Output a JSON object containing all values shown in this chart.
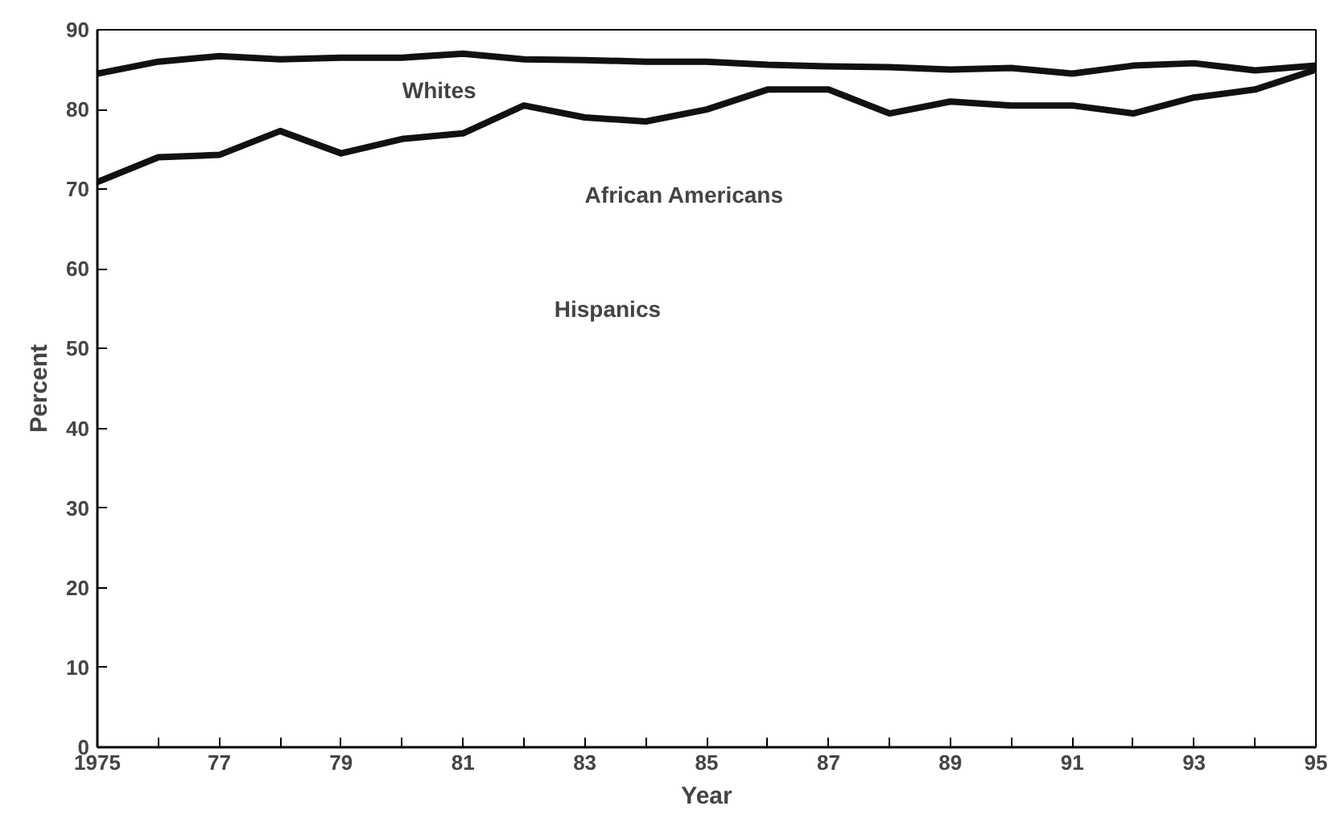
{
  "chart_data": {
    "type": "line",
    "xlabel": "Year",
    "ylabel": "Percent",
    "x": [
      1975,
      1976,
      1977,
      1978,
      1979,
      1980,
      1981,
      1982,
      1983,
      1984,
      1985,
      1986,
      1987,
      1988,
      1989,
      1990,
      1991,
      1992,
      1993,
      1994,
      1995
    ],
    "series": [
      {
        "name": "Whites",
        "color": "#111111",
        "values": [
          84.5,
          86,
          86.7,
          86.3,
          86.5,
          86.5,
          87,
          86.3,
          86.2,
          86,
          86,
          85.6,
          85.4,
          85.3,
          85,
          85.2,
          84.5,
          85.5,
          85.8,
          84.9,
          85.5
        ]
      },
      {
        "name": "African Americans",
        "color": "#111111",
        "values": [
          70.9,
          74,
          74.3,
          77.3,
          74.5,
          76.3,
          77,
          80.5,
          79,
          78.5,
          80,
          82.5,
          82.5,
          79.5,
          81,
          80.5,
          80.5,
          79.5,
          81.5,
          82.5,
          85
        ]
      }
    ],
    "annotations": [
      "Hispanics"
    ],
    "xlim": [
      1975,
      1995
    ],
    "ylim": [
      0,
      90
    ],
    "xticks": [
      1975,
      {
        "value": 1976,
        "label": null
      },
      {
        "value": 1977,
        "label": "77"
      },
      {
        "value": 1978,
        "label": null
      },
      {
        "value": 1979,
        "label": "79"
      },
      {
        "value": 1980,
        "label": null
      },
      {
        "value": 1981,
        "label": "81"
      },
      {
        "value": 1982,
        "label": null
      },
      {
        "value": 1983,
        "label": "83"
      },
      {
        "value": 1984,
        "label": null
      },
      {
        "value": 1985,
        "label": "85"
      },
      {
        "value": 1986,
        "label": null
      },
      {
        "value": 1987,
        "label": "87"
      },
      {
        "value": 1988,
        "label": null
      },
      {
        "value": 1989,
        "label": "89"
      },
      {
        "value": 1990,
        "label": null
      },
      {
        "value": 1991,
        "label": "91"
      },
      {
        "value": 1992,
        "label": null
      },
      {
        "value": 1993,
        "label": "93"
      },
      {
        "value": 1994,
        "label": null
      },
      {
        "value": 1995,
        "label": "95"
      }
    ],
    "yticks": [
      0,
      10,
      20,
      30,
      40,
      50,
      60,
      70,
      80,
      90
    ],
    "grid": false,
    "legend": false,
    "line_style": "solid",
    "marker": "none"
  }
}
